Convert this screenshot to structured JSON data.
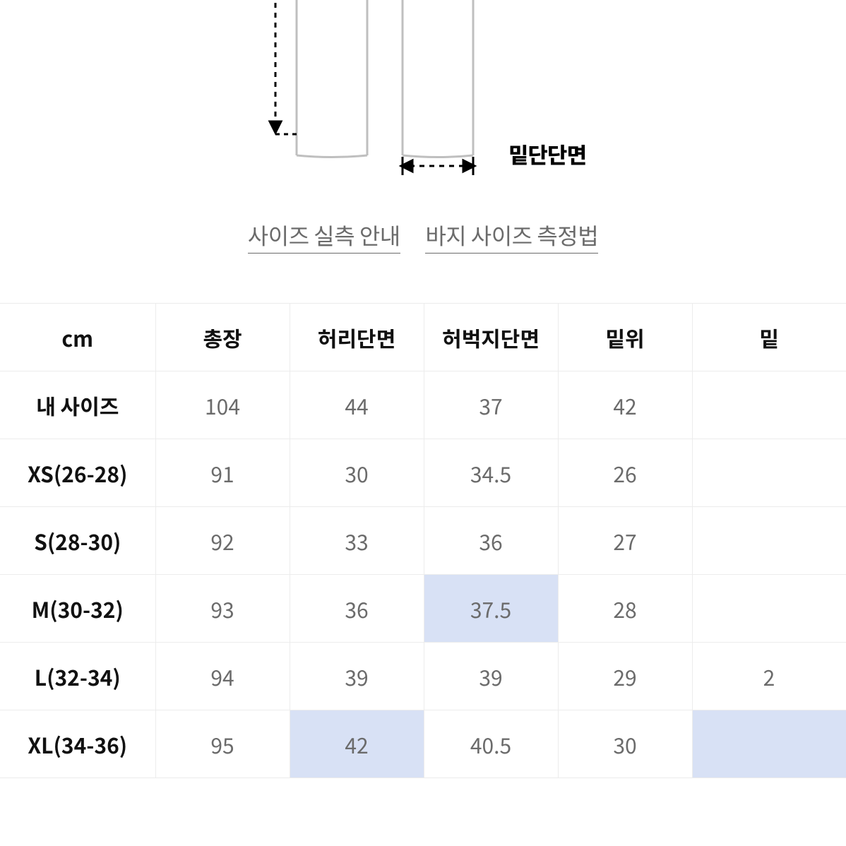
{
  "diagram": {
    "hem_label": "밑단단면",
    "stroke_color": "#bfbfbf",
    "dash_color": "#000000"
  },
  "links": {
    "size_guide": "사이즈 실측 안내",
    "measure_guide": "바지 사이즈 측정법"
  },
  "table": {
    "unit_header": "cm",
    "columns": [
      "총장",
      "허리단면",
      "허벅지단면",
      "밑위",
      "밑"
    ],
    "highlight_color": "#d8e1f5",
    "rows": [
      {
        "label": "내 사이즈",
        "values": [
          "104",
          "44",
          "37",
          "42",
          ""
        ],
        "highlights": [
          false,
          false,
          false,
          false,
          false
        ]
      },
      {
        "label": "XS(26-28)",
        "values": [
          "91",
          "30",
          "34.5",
          "26",
          ""
        ],
        "highlights": [
          false,
          false,
          false,
          false,
          false
        ]
      },
      {
        "label": "S(28-30)",
        "values": [
          "92",
          "33",
          "36",
          "27",
          ""
        ],
        "highlights": [
          false,
          false,
          false,
          false,
          false
        ]
      },
      {
        "label": "M(30-32)",
        "values": [
          "93",
          "36",
          "37.5",
          "28",
          ""
        ],
        "highlights": [
          false,
          false,
          true,
          false,
          false
        ]
      },
      {
        "label": "L(32-34)",
        "values": [
          "94",
          "39",
          "39",
          "29",
          "2"
        ],
        "highlights": [
          false,
          false,
          false,
          false,
          false
        ]
      },
      {
        "label": "XL(34-36)",
        "values": [
          "95",
          "42",
          "40.5",
          "30",
          ""
        ],
        "highlights": [
          false,
          true,
          false,
          false,
          true
        ]
      }
    ],
    "colors": {
      "border": "#ececec",
      "header_text": "#111111",
      "cell_text": "#6b6b6b",
      "row_label_text": "#111111",
      "background": "#ffffff"
    },
    "font_sizes": {
      "header": 30,
      "cell": 30
    }
  }
}
